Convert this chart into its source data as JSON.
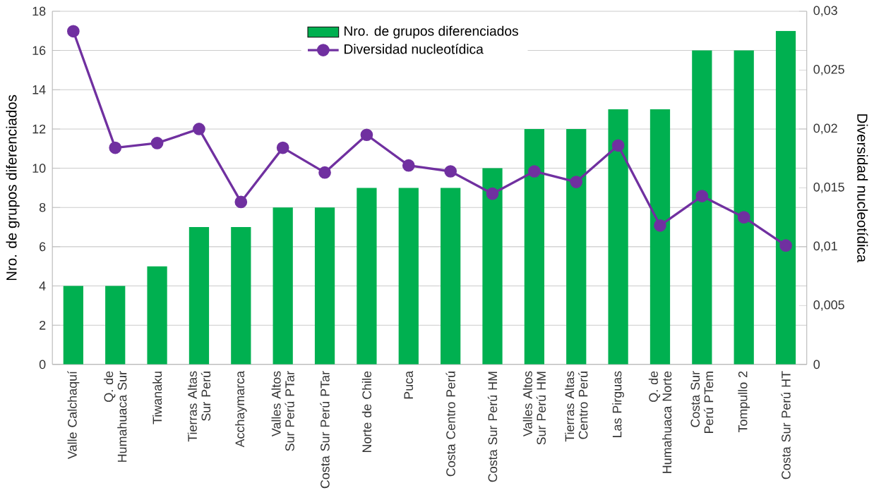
{
  "chart_data": {
    "type": "bar",
    "ylabel": "Nro. de grupos diferenciados",
    "y2label": "Diversidad nucleotídica",
    "categories": [
      "Valle Calchaquí",
      "Q. de Humahuaca Sur",
      "Tiwanaku",
      "Tierras Altas Sur Perú",
      "Acchaymarca",
      "Valles Altos Sur Perú PTar",
      "Costa Sur Perú PTar",
      "Norte de Chile",
      "Puca",
      "Costa Centro Perú",
      "Costa Sur Perú HM",
      "Valles Altos Sur Perú HM",
      "Tierras Altas Centro Perú",
      "Las Pirguas",
      "Q. de Humahuaca Norte",
      "Costa Sur Perú PTem",
      "Tompullo 2",
      "Costa Sur Perú HT"
    ],
    "series": [
      {
        "name": "Nro. de grupos diferenciados",
        "color": "#00b050",
        "values": [
          4,
          4,
          5,
          7,
          7,
          8,
          8,
          9,
          9,
          9,
          10,
          12,
          12,
          13,
          13,
          16,
          16,
          17
        ]
      },
      {
        "name": "Diversidad nucleotídica",
        "type": "line",
        "axis": "y2",
        "color": "#7030a0",
        "marker": "circle",
        "values": [
          0.0283,
          0.0184,
          0.0188,
          0.02,
          0.0138,
          0.0184,
          0.0163,
          0.0195,
          0.0169,
          0.0164,
          0.0145,
          0.0164,
          0.0155,
          0.0186,
          0.0118,
          0.0143,
          0.0125,
          0.0101
        ]
      }
    ],
    "ylim": [
      0,
      18
    ],
    "yticks": [
      0,
      2,
      4,
      6,
      8,
      10,
      12,
      14,
      16,
      18
    ],
    "y2lim": [
      0,
      0.03
    ],
    "y2ticks": [
      {
        "value": 0,
        "label": "0"
      },
      {
        "value": 0.005,
        "label": "0,005"
      },
      {
        "value": 0.01,
        "label": "0,01"
      },
      {
        "value": 0.015,
        "label": "0,015"
      },
      {
        "value": 0.02,
        "label": "0,02"
      },
      {
        "value": 0.025,
        "label": "0,025"
      },
      {
        "value": 0.03,
        "label": "0,03"
      }
    ],
    "grid": "y",
    "legend": "top"
  }
}
